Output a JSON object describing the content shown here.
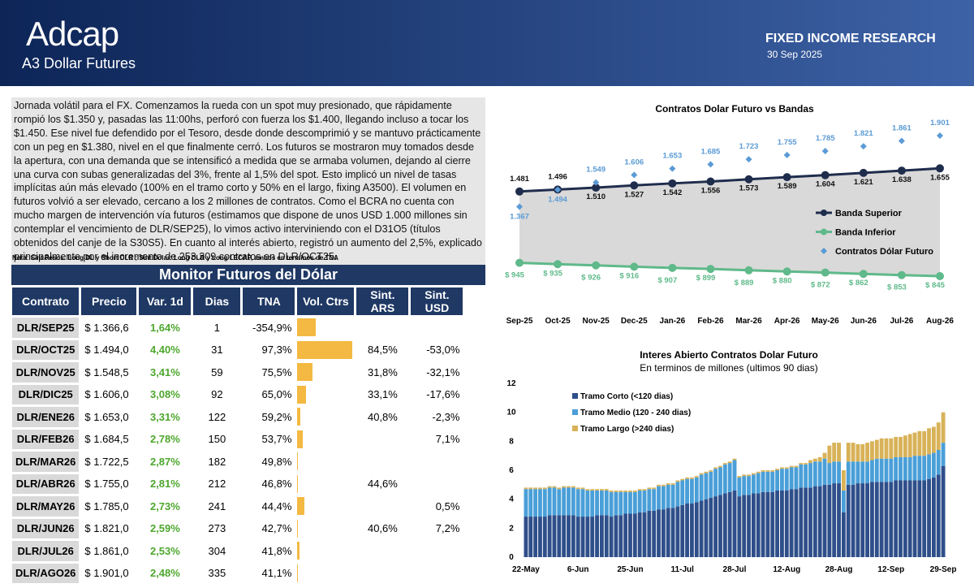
{
  "header": {
    "logo": "Adcap",
    "subtitle": "A3 Dollar Futures",
    "section": "FIXED INCOME RESEARCH",
    "date": "30 Sep 2025"
  },
  "commentary": {
    "text": "Jornada volátil para el FX. Comenzamos la rueda con un spot muy presionado, que rápidamente rompió los $1.350 y, pasadas las 11:00hs, perforó con fuerza los $1.400, llegando incluso a tocar los $1.450. Ese nivel fue defendido por el Tesoro, desde donde descomprimió y se mantuvo prácticamente con un peg en $1.380, nivel en el que finalmente cerró. Los futuros se mostraron muy tomados desde la apertura, con una demanda que se intensificó a medida que se armaba volumen, dejando al cierre una curva con subas generalizadas del 3%, frente al 1,5% del spot. Esto implicó un nivel de tasas implícitas aún más elevado (100% en el tramo corto y 50% en el largo, fixing A3500). El volumen en futuros volvió a ser elevado, cercano a los 2 millones de contratos. Como el BCRA no cuenta con mucho margen de intervención vía futuros (estimamos que dispone de unos USD 1.000 millones sin contemplar el vencimiento de DLR/SEP25), lo vimos activo interviniendo con el D31O5 (títulos obtenidos del canje de la S30S5). En cuanto al interés abierto, registró un aumento del 2,5%, explicado principalmente por el incremento de 253.309 contratos en DLR/OCT25.",
    "note": "Nota: Sint.Pesos: Long DL y Short DLR ; Sint.Dolar: Long DLR y Long LECAP, ambos en terminos de TNA"
  },
  "table": {
    "title": "Monitor Futuros del Dólar",
    "vol_color": "#f4b942",
    "columns": [
      "Contrato",
      "Precio",
      "Var. 1d",
      "Dias",
      "TNA",
      "Vol. Ctrs",
      "Sint. ARS",
      "Sint. USD"
    ],
    "rows": [
      [
        "DLR/SEP25",
        "$ 1.366,6",
        "1,64%",
        "1",
        "-354,9%",
        330,
        null,
        null
      ],
      [
        "DLR/OCT25",
        "$ 1.494,0",
        "4,40%",
        "31",
        "97,3%",
        1000,
        "84,5%",
        "-53,0%"
      ],
      [
        "DLR/NOV25",
        "$ 1.548,5",
        "3,41%",
        "59",
        "75,5%",
        270,
        "31,8%",
        "-32,1%"
      ],
      [
        "DLR/DIC25",
        "$ 1.606,0",
        "3,08%",
        "92",
        "65,0%",
        150,
        "33,1%",
        "-17,6%"
      ],
      [
        "DLR/ENE26",
        "$ 1.653,0",
        "3,31%",
        "122",
        "59,2%",
        60,
        "40,8%",
        "-2,3%"
      ],
      [
        "DLR/FEB26",
        "$ 1.684,5",
        "2,78%",
        "150",
        "53,7%",
        90,
        null,
        "7,1%"
      ],
      [
        "DLR/MAR26",
        "$ 1.722,5",
        "2,87%",
        "182",
        "49,8%",
        15,
        null,
        null
      ],
      [
        "DLR/ABR26",
        "$ 1.755,0",
        "2,81%",
        "212",
        "46,8%",
        15,
        "44,6%",
        null
      ],
      [
        "DLR/MAY26",
        "$ 1.785,0",
        "2,73%",
        "241",
        "44,4%",
        130,
        null,
        "0,5%"
      ],
      [
        "DLR/JUN26",
        "$ 1.821,0",
        "2,59%",
        "273",
        "42,7%",
        15,
        "40,6%",
        "7,2%"
      ],
      [
        "DLR/JUL26",
        "$ 1.861,0",
        "2,53%",
        "304",
        "41,8%",
        45,
        null,
        null
      ],
      [
        "DLR/AGO26",
        "$ 1.901,0",
        "2,48%",
        "335",
        "41,1%",
        15,
        null,
        null
      ]
    ]
  },
  "chart_data": [
    {
      "type": "line",
      "title": "Contratos Dolar Futuro vs Bandas",
      "band_fill": "#d9d9d9",
      "legend": "right",
      "categories": [
        "Sep-25",
        "Oct-25",
        "Nov-25",
        "Dec-25",
        "Jan-26",
        "Feb-26",
        "Mar-26",
        "Apr-26",
        "May-26",
        "Jun-26",
        "Jul-26",
        "Aug-26"
      ],
      "series": [
        {
          "name": "Banda Superior",
          "color": "#1f2d4d",
          "style": "line",
          "values": [
            1481,
            1496,
            1510,
            1527,
            1542,
            1556,
            1573,
            1589,
            1604,
            1621,
            1638,
            1655
          ],
          "value_labels": [
            "1.481",
            "1.496",
            "1.510",
            "1.527",
            "1.542",
            "1.556",
            "1.573",
            "1.589",
            "1.604",
            "1.621",
            "1.638",
            "1.655"
          ]
        },
        {
          "name": "Banda Inferior",
          "color": "#5fb98a",
          "style": "line",
          "values": [
            945,
            935,
            926,
            916,
            907,
            899,
            889,
            880,
            872,
            862,
            853,
            845
          ],
          "value_labels": [
            "$ 945",
            "$ 935",
            "$ 926",
            "$ 916",
            "$ 907",
            "$ 899",
            "$ 889",
            "$ 880",
            "$ 872",
            "$ 862",
            "$ 853",
            "$ 845"
          ]
        },
        {
          "name": "Contratos Dólar Futuro",
          "color": "#5b9bd5",
          "style": "markers",
          "values": [
            1367,
            1494,
            1549,
            1606,
            1653,
            1685,
            1723,
            1755,
            1785,
            1821,
            1861,
            1901
          ],
          "value_labels": [
            "1.367",
            "1.494",
            "1.549",
            "1.606",
            "1.653",
            "1.685",
            "1.723",
            "1.755",
            "1.785",
            "1.821",
            "1.861",
            "1.901"
          ]
        }
      ]
    },
    {
      "type": "bar",
      "stacked": true,
      "title": "Interes Abierto Contratos Dolar Futuro",
      "subtitle": "En terminos de millones (ultimos 90 dias)",
      "legend": "top-left",
      "ylim": [
        0,
        12
      ],
      "yticks": [
        0,
        2,
        4,
        6,
        8,
        10,
        12
      ],
      "categories": [
        "22-May",
        null,
        null,
        null,
        null,
        null,
        null,
        null,
        null,
        null,
        null,
        "6-Jun",
        null,
        null,
        null,
        null,
        null,
        null,
        null,
        null,
        null,
        null,
        "25-Jun",
        null,
        null,
        null,
        null,
        null,
        null,
        null,
        null,
        null,
        null,
        "11-Jul",
        null,
        null,
        null,
        null,
        null,
        null,
        null,
        null,
        null,
        null,
        "28-Jul",
        null,
        null,
        null,
        null,
        null,
        null,
        null,
        null,
        null,
        null,
        "12-Aug",
        null,
        null,
        null,
        null,
        null,
        null,
        null,
        null,
        null,
        null,
        "28-Aug",
        null,
        null,
        null,
        null,
        null,
        null,
        null,
        null,
        null,
        null,
        "12-Sep",
        null,
        null,
        null,
        null,
        null,
        null,
        null,
        null,
        null,
        null,
        "29-Sep"
      ],
      "series": [
        {
          "name": "Tramo Corto (<120 dias)",
          "color": "#2f4f8a",
          "values": [
            2.8,
            2.8,
            2.8,
            2.8,
            2.8,
            2.9,
            2.9,
            2.9,
            2.9,
            2.9,
            2.9,
            2.8,
            2.8,
            2.8,
            2.8,
            2.9,
            2.9,
            2.9,
            2.8,
            2.9,
            2.9,
            3.0,
            3.0,
            3.0,
            3.1,
            3.1,
            3.2,
            3.2,
            3.3,
            3.3,
            3.4,
            3.4,
            3.5,
            3.6,
            3.7,
            3.7,
            3.8,
            3.9,
            4.0,
            4.1,
            4.2,
            4.3,
            4.4,
            4.5,
            4.6,
            4.2,
            4.3,
            4.3,
            4.4,
            4.4,
            4.5,
            4.5,
            4.5,
            4.6,
            4.6,
            4.6,
            4.7,
            4.7,
            4.8,
            4.8,
            4.8,
            4.9,
            4.9,
            5.0,
            5.0,
            5.1,
            5.1,
            3.1,
            5.0,
            5.0,
            5.1,
            5.1,
            5.1,
            5.2,
            5.2,
            5.2,
            5.2,
            5.2,
            5.3,
            5.3,
            5.3,
            5.3,
            5.3,
            5.3,
            5.3,
            5.4,
            5.5,
            5.7,
            6.3
          ]
        },
        {
          "name": "Tramo Medio (120 - 240 dias)",
          "color": "#4a9fd8",
          "values": [
            1.9,
            1.9,
            1.9,
            1.9,
            1.9,
            1.9,
            1.9,
            1.8,
            1.9,
            1.9,
            1.9,
            1.9,
            1.9,
            1.8,
            1.8,
            1.7,
            1.7,
            1.7,
            1.7,
            1.6,
            1.6,
            1.5,
            1.5,
            1.5,
            1.5,
            1.5,
            1.5,
            1.5,
            1.6,
            1.6,
            1.6,
            1.6,
            1.7,
            1.7,
            1.7,
            1.7,
            1.7,
            1.8,
            1.8,
            1.8,
            1.9,
            1.9,
            2.0,
            2.0,
            2.1,
            1.3,
            1.3,
            1.3,
            1.3,
            1.4,
            1.4,
            1.4,
            1.4,
            1.4,
            1.5,
            1.5,
            1.5,
            1.5,
            1.6,
            1.6,
            1.7,
            1.7,
            1.7,
            1.8,
            1.5,
            1.5,
            1.5,
            1.5,
            1.6,
            1.6,
            1.5,
            1.5,
            1.5,
            1.5,
            1.6,
            1.6,
            1.6,
            1.6,
            1.6,
            1.6,
            1.6,
            1.6,
            1.7,
            1.7,
            1.7,
            1.7,
            1.7,
            1.7,
            1.6
          ]
        },
        {
          "name": "Tramo Largo (>240 dias)",
          "color": "#d8b258",
          "values": [
            0.1,
            0.1,
            0.1,
            0.1,
            0.1,
            0.1,
            0.1,
            0.1,
            0.1,
            0.1,
            0.1,
            0.1,
            0.1,
            0.1,
            0.1,
            0.1,
            0.1,
            0.1,
            0.1,
            0.1,
            0.1,
            0.1,
            0.1,
            0.1,
            0.1,
            0.1,
            0.1,
            0.1,
            0.1,
            0.1,
            0.1,
            0.1,
            0.1,
            0.1,
            0.1,
            0.1,
            0.1,
            0.1,
            0.1,
            0.1,
            0.1,
            0.1,
            0.1,
            0.1,
            0.1,
            0.1,
            0.1,
            0.1,
            0.1,
            0.1,
            0.1,
            0.1,
            0.1,
            0.1,
            0.1,
            0.1,
            0.1,
            0.1,
            0.1,
            0.1,
            0.2,
            0.2,
            0.3,
            0.4,
            1.2,
            1.3,
            1.3,
            1.4,
            1.3,
            1.3,
            1.2,
            1.2,
            1.3,
            1.3,
            1.3,
            1.4,
            1.4,
            1.4,
            1.4,
            1.4,
            1.5,
            1.6,
            1.6,
            1.7,
            1.7,
            1.8,
            1.8,
            1.9,
            2.1
          ]
        }
      ]
    }
  ]
}
